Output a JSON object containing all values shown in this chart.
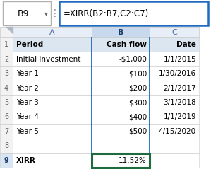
{
  "name_box_text": "B9",
  "formula": "=XIRR(B2:B7,C2:C7)",
  "headers": [
    "Period",
    "Cash flow",
    "Date"
  ],
  "rows": [
    [
      "Initial investment",
      "-$1,000",
      "1/1/2015"
    ],
    [
      "Year 1",
      "$100",
      "1/30/2016"
    ],
    [
      "Year 2",
      "$200",
      "2/1/2017"
    ],
    [
      "Year 3",
      "$300",
      "3/1/2018"
    ],
    [
      "Year 4",
      "$400",
      "1/1/2019"
    ],
    [
      "Year 5",
      "$500",
      "4/15/2020"
    ],
    [
      "",
      "",
      ""
    ],
    [
      "XIRR",
      "11.52%",
      ""
    ]
  ],
  "bg_color": "#ffffff",
  "formula_bar_bg": "#ffffff",
  "formula_bar_border": "#1f6bbf",
  "name_box_border": "#b0b0b0",
  "col_header_bg_normal": "#e8eef7",
  "col_header_bg_selected": "#c8d8ed",
  "row_header_bg_normal": "#f2f2f2",
  "row_header_bg_selected": "#d8e6f3",
  "row_header_text_selected": "#1a3a6b",
  "row1_bg": "#dce6f1",
  "grid_color": "#c8c8c8",
  "arrow_color": "#1f6bbf",
  "xirr_border_color": "#1d6b3e",
  "col_header_text_normal": "#4f6b9f",
  "col_header_text_selected": "#1a3a6b",
  "text_color": "#000000",
  "formula_text_color": "#1a1aff"
}
